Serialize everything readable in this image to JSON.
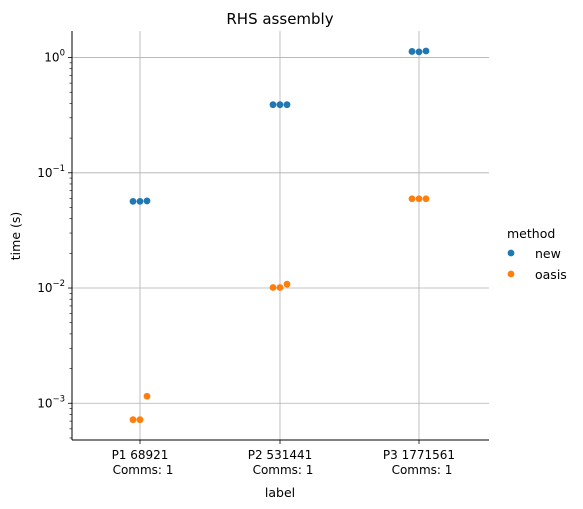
{
  "chart_data": {
    "type": "scatter",
    "title": "RHS assembly",
    "xlabel": "label",
    "ylabel": "time (s)",
    "yscale": "log",
    "ylim": [
      0.00048,
      1.7
    ],
    "categories": [
      "P1 68921\nComms: 1",
      "P2 531441\nComms: 1",
      "P3 1771561\nComms: 1"
    ],
    "yticks": [
      {
        "value": 0.001,
        "base": "10",
        "exp": "−3"
      },
      {
        "value": 0.01,
        "base": "10",
        "exp": "−2"
      },
      {
        "value": 0.1,
        "base": "10",
        "exp": "−1"
      },
      {
        "value": 1,
        "base": "10",
        "exp": "0"
      }
    ],
    "grid": true,
    "legend": {
      "title": "method",
      "position": "right"
    },
    "series": [
      {
        "name": "new",
        "color": "#1f77b4",
        "points": [
          {
            "category": 0,
            "values": [
              0.0565,
              0.0565,
              0.057
            ]
          },
          {
            "category": 1,
            "values": [
              0.39,
              0.39,
              0.39
            ]
          },
          {
            "category": 2,
            "values": [
              1.13,
              1.12,
              1.14
            ]
          }
        ]
      },
      {
        "name": "oasis",
        "color": "#ff7f0e",
        "points": [
          {
            "category": 0,
            "values": [
              0.00072,
              0.00072,
              0.00115
            ]
          },
          {
            "category": 1,
            "values": [
              0.0101,
              0.0101,
              0.0108
            ]
          },
          {
            "category": 2,
            "values": [
              0.0595,
              0.0595,
              0.0595
            ]
          }
        ]
      }
    ]
  }
}
